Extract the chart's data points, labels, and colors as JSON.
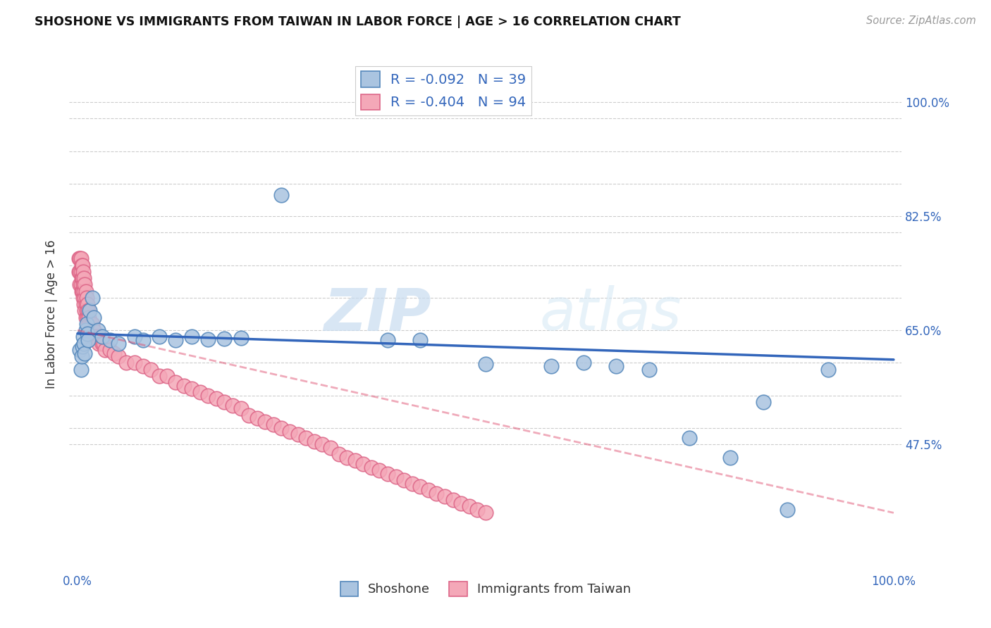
{
  "title": "SHOSHONE VS IMMIGRANTS FROM TAIWAN IN LABOR FORCE | AGE > 16 CORRELATION CHART",
  "source": "Source: ZipAtlas.com",
  "ylabel": "In Labor Force | Age > 16",
  "background_color": "#ffffff",
  "grid_color": "#cccccc",
  "shoshone_color": "#aac4e0",
  "taiwan_color": "#f4a8b8",
  "shoshone_edge_color": "#5588bb",
  "taiwan_edge_color": "#dd6688",
  "shoshone_line_color": "#3366bb",
  "taiwan_line_color": "#dd4466",
  "legend_r_shoshone": "-0.092",
  "legend_n_shoshone": "39",
  "legend_r_taiwan": "-0.404",
  "legend_n_taiwan": "94",
  "watermark_zip": "ZIP",
  "watermark_atlas": "atlas",
  "ytick_positions": [
    0.475,
    0.5,
    0.55,
    0.6,
    0.65,
    0.7,
    0.75,
    0.8,
    0.825,
    0.875,
    0.925,
    0.975,
    1.0
  ],
  "ytick_labels": [
    "47.5%",
    "",
    "",
    "",
    "65.0%",
    "",
    "",
    "",
    "82.5%",
    "",
    "",
    "",
    "100.0%"
  ],
  "ylim_low": 0.28,
  "ylim_high": 1.07,
  "xlim_low": -0.01,
  "xlim_high": 1.01,
  "shoshone_x": [
    0.003,
    0.004,
    0.005,
    0.006,
    0.007,
    0.008,
    0.009,
    0.01,
    0.011,
    0.012,
    0.013,
    0.015,
    0.018,
    0.02,
    0.025,
    0.03,
    0.04,
    0.05,
    0.07,
    0.08,
    0.1,
    0.12,
    0.14,
    0.16,
    0.18,
    0.2,
    0.25,
    0.38,
    0.42,
    0.5,
    0.58,
    0.62,
    0.66,
    0.7,
    0.75,
    0.8,
    0.84,
    0.87,
    0.92
  ],
  "shoshone_y": [
    0.62,
    0.59,
    0.61,
    0.625,
    0.64,
    0.63,
    0.615,
    0.65,
    0.66,
    0.645,
    0.635,
    0.68,
    0.7,
    0.67,
    0.65,
    0.64,
    0.635,
    0.63,
    0.64,
    0.635,
    0.64,
    0.635,
    0.64,
    0.636,
    0.637,
    0.638,
    0.858,
    0.635,
    0.635,
    0.598,
    0.595,
    0.6,
    0.595,
    0.59,
    0.485,
    0.455,
    0.54,
    0.375,
    0.59
  ],
  "taiwan_x": [
    0.002,
    0.002,
    0.003,
    0.003,
    0.003,
    0.004,
    0.004,
    0.004,
    0.005,
    0.005,
    0.005,
    0.006,
    0.006,
    0.006,
    0.007,
    0.007,
    0.007,
    0.008,
    0.008,
    0.008,
    0.009,
    0.009,
    0.009,
    0.01,
    0.01,
    0.01,
    0.011,
    0.011,
    0.012,
    0.012,
    0.013,
    0.013,
    0.014,
    0.015,
    0.016,
    0.017,
    0.018,
    0.019,
    0.02,
    0.022,
    0.024,
    0.026,
    0.028,
    0.03,
    0.032,
    0.034,
    0.04,
    0.045,
    0.05,
    0.06,
    0.07,
    0.08,
    0.09,
    0.1,
    0.11,
    0.12,
    0.13,
    0.14,
    0.15,
    0.16,
    0.17,
    0.18,
    0.19,
    0.2,
    0.21,
    0.22,
    0.23,
    0.24,
    0.25,
    0.26,
    0.27,
    0.28,
    0.29,
    0.3,
    0.31,
    0.32,
    0.33,
    0.34,
    0.35,
    0.36,
    0.37,
    0.38,
    0.39,
    0.4,
    0.41,
    0.42,
    0.43,
    0.44,
    0.45,
    0.46,
    0.47,
    0.48,
    0.49,
    0.5
  ],
  "taiwan_y": [
    0.76,
    0.74,
    0.76,
    0.74,
    0.72,
    0.76,
    0.74,
    0.72,
    0.75,
    0.73,
    0.71,
    0.75,
    0.73,
    0.71,
    0.74,
    0.72,
    0.7,
    0.73,
    0.71,
    0.69,
    0.72,
    0.7,
    0.68,
    0.71,
    0.69,
    0.67,
    0.7,
    0.68,
    0.69,
    0.67,
    0.68,
    0.66,
    0.67,
    0.66,
    0.66,
    0.65,
    0.66,
    0.65,
    0.65,
    0.64,
    0.64,
    0.63,
    0.64,
    0.63,
    0.63,
    0.62,
    0.62,
    0.615,
    0.61,
    0.6,
    0.6,
    0.595,
    0.59,
    0.58,
    0.58,
    0.57,
    0.565,
    0.56,
    0.555,
    0.55,
    0.545,
    0.54,
    0.535,
    0.53,
    0.52,
    0.515,
    0.51,
    0.505,
    0.5,
    0.495,
    0.49,
    0.485,
    0.48,
    0.475,
    0.47,
    0.46,
    0.455,
    0.45,
    0.445,
    0.44,
    0.435,
    0.43,
    0.425,
    0.42,
    0.415,
    0.41,
    0.405,
    0.4,
    0.395,
    0.39,
    0.385,
    0.38,
    0.375,
    0.37
  ]
}
